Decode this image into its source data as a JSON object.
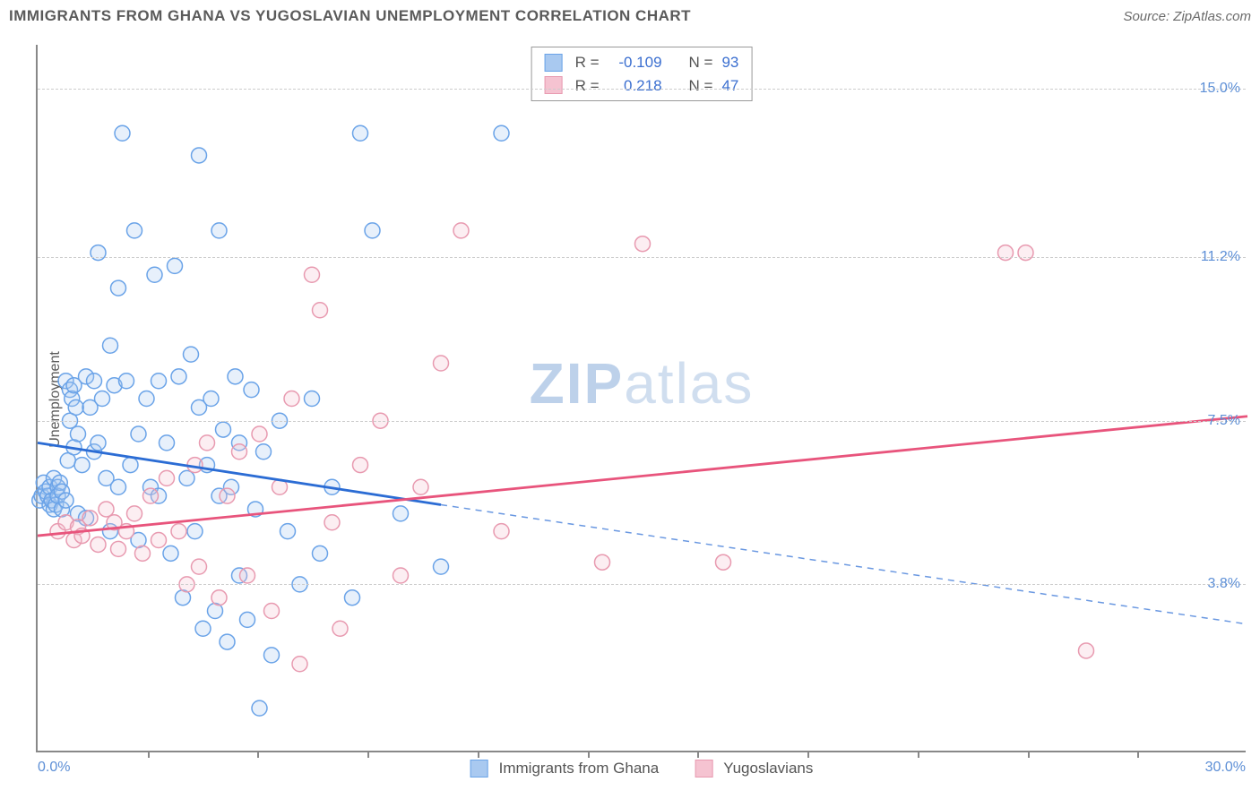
{
  "header": {
    "title": "IMMIGRANTS FROM GHANA VS YUGOSLAVIAN UNEMPLOYMENT CORRELATION CHART",
    "source": "Source: ZipAtlas.com"
  },
  "watermark": {
    "zip": "ZIP",
    "atlas": "atlas"
  },
  "chart": {
    "type": "scatter-with-regression",
    "ylabel": "Unemployment",
    "xlim": [
      0,
      30
    ],
    "ylim": [
      0,
      16
    ],
    "x_min_label": "0.0%",
    "x_max_label": "30.0%",
    "x_ticks": [
      2.73,
      5.45,
      8.18,
      10.91,
      13.64,
      16.36,
      19.09,
      21.82,
      24.55,
      27.27
    ],
    "y_gridlines": [
      3.8,
      7.5,
      11.2,
      15.0
    ],
    "y_tick_labels": [
      "3.8%",
      "7.5%",
      "11.2%",
      "15.0%"
    ],
    "grid_color": "#cccccc",
    "axis_color": "#888888",
    "background_color": "#ffffff",
    "tick_label_color": "#5d8fd6",
    "axis_label_color": "#5a5a5a",
    "marker_radius": 8.5,
    "marker_stroke_width": 1.5,
    "marker_fill_opacity": 0.28,
    "line_width": 2.8,
    "series": [
      {
        "name": "Immigrants from Ghana",
        "color_stroke": "#6aa3e8",
        "color_fill": "#a9c9f0",
        "line_color": "#2b6cd4",
        "R": "-0.109",
        "N": "93",
        "regression": {
          "x1": 0,
          "y1": 7.0,
          "x_solid_end": 10.0,
          "y_solid_end": 5.6,
          "x2": 30,
          "y2": 2.9,
          "dash_after_solid": true
        },
        "points": [
          [
            0.05,
            5.7
          ],
          [
            0.1,
            5.8
          ],
          [
            0.15,
            6.1
          ],
          [
            0.2,
            5.9
          ],
          [
            0.25,
            5.8
          ],
          [
            0.3,
            6.0
          ],
          [
            0.3,
            5.6
          ],
          [
            0.35,
            5.7
          ],
          [
            0.4,
            5.5
          ],
          [
            0.4,
            6.2
          ],
          [
            0.45,
            5.6
          ],
          [
            0.5,
            6.0
          ],
          [
            0.5,
            5.8
          ],
          [
            0.55,
            6.1
          ],
          [
            0.6,
            5.5
          ],
          [
            0.6,
            5.9
          ],
          [
            0.7,
            5.7
          ],
          [
            0.7,
            8.4
          ],
          [
            0.75,
            6.6
          ],
          [
            0.8,
            7.5
          ],
          [
            0.8,
            8.2
          ],
          [
            0.85,
            8.0
          ],
          [
            0.9,
            6.9
          ],
          [
            0.9,
            8.3
          ],
          [
            0.95,
            7.8
          ],
          [
            1.0,
            7.2
          ],
          [
            1.0,
            5.4
          ],
          [
            1.1,
            6.5
          ],
          [
            1.2,
            8.5
          ],
          [
            1.2,
            5.3
          ],
          [
            1.3,
            7.8
          ],
          [
            1.4,
            6.8
          ],
          [
            1.4,
            8.4
          ],
          [
            1.5,
            7.0
          ],
          [
            1.5,
            11.3
          ],
          [
            1.6,
            8.0
          ],
          [
            1.7,
            6.2
          ],
          [
            1.8,
            9.2
          ],
          [
            1.8,
            5.0
          ],
          [
            1.9,
            8.3
          ],
          [
            2.0,
            10.5
          ],
          [
            2.0,
            6.0
          ],
          [
            2.1,
            14.0
          ],
          [
            2.2,
            8.4
          ],
          [
            2.3,
            6.5
          ],
          [
            2.4,
            11.8
          ],
          [
            2.5,
            7.2
          ],
          [
            2.5,
            4.8
          ],
          [
            2.7,
            8.0
          ],
          [
            2.8,
            6.0
          ],
          [
            2.9,
            10.8
          ],
          [
            3.0,
            8.4
          ],
          [
            3.0,
            5.8
          ],
          [
            3.2,
            7.0
          ],
          [
            3.3,
            4.5
          ],
          [
            3.4,
            11.0
          ],
          [
            3.5,
            8.5
          ],
          [
            3.6,
            3.5
          ],
          [
            3.7,
            6.2
          ],
          [
            3.8,
            9.0
          ],
          [
            3.9,
            5.0
          ],
          [
            4.0,
            13.5
          ],
          [
            4.0,
            7.8
          ],
          [
            4.1,
            2.8
          ],
          [
            4.2,
            6.5
          ],
          [
            4.3,
            8.0
          ],
          [
            4.4,
            3.2
          ],
          [
            4.5,
            11.8
          ],
          [
            4.5,
            5.8
          ],
          [
            4.6,
            7.3
          ],
          [
            4.7,
            2.5
          ],
          [
            4.8,
            6.0
          ],
          [
            4.9,
            8.5
          ],
          [
            5.0,
            4.0
          ],
          [
            5.0,
            7.0
          ],
          [
            5.2,
            3.0
          ],
          [
            5.3,
            8.2
          ],
          [
            5.4,
            5.5
          ],
          [
            5.5,
            1.0
          ],
          [
            5.6,
            6.8
          ],
          [
            5.8,
            2.2
          ],
          [
            6.0,
            7.5
          ],
          [
            6.2,
            5.0
          ],
          [
            6.5,
            3.8
          ],
          [
            6.8,
            8.0
          ],
          [
            7.0,
            4.5
          ],
          [
            7.3,
            6.0
          ],
          [
            7.8,
            3.5
          ],
          [
            8.0,
            14.0
          ],
          [
            8.3,
            11.8
          ],
          [
            9.0,
            5.4
          ],
          [
            10.0,
            4.2
          ],
          [
            11.5,
            14.0
          ]
        ]
      },
      {
        "name": "Yugoslavians",
        "color_stroke": "#e89ab0",
        "color_fill": "#f5c3d1",
        "line_color": "#e8547c",
        "R": "0.218",
        "N": "47",
        "regression": {
          "x1": 0,
          "y1": 4.9,
          "x_solid_end": 30,
          "y_solid_end": 7.6,
          "x2": 30,
          "y2": 7.6,
          "dash_after_solid": false
        },
        "points": [
          [
            0.5,
            5.0
          ],
          [
            0.7,
            5.2
          ],
          [
            0.9,
            4.8
          ],
          [
            1.0,
            5.1
          ],
          [
            1.1,
            4.9
          ],
          [
            1.3,
            5.3
          ],
          [
            1.5,
            4.7
          ],
          [
            1.7,
            5.5
          ],
          [
            1.9,
            5.2
          ],
          [
            2.0,
            4.6
          ],
          [
            2.2,
            5.0
          ],
          [
            2.4,
            5.4
          ],
          [
            2.6,
            4.5
          ],
          [
            2.8,
            5.8
          ],
          [
            3.0,
            4.8
          ],
          [
            3.2,
            6.2
          ],
          [
            3.5,
            5.0
          ],
          [
            3.7,
            3.8
          ],
          [
            3.9,
            6.5
          ],
          [
            4.0,
            4.2
          ],
          [
            4.2,
            7.0
          ],
          [
            4.5,
            3.5
          ],
          [
            4.7,
            5.8
          ],
          [
            5.0,
            6.8
          ],
          [
            5.2,
            4.0
          ],
          [
            5.5,
            7.2
          ],
          [
            5.8,
            3.2
          ],
          [
            6.0,
            6.0
          ],
          [
            6.3,
            8.0
          ],
          [
            6.5,
            2.0
          ],
          [
            6.8,
            10.8
          ],
          [
            7.0,
            10.0
          ],
          [
            7.3,
            5.2
          ],
          [
            7.5,
            2.8
          ],
          [
            8.0,
            6.5
          ],
          [
            8.5,
            7.5
          ],
          [
            9.0,
            4.0
          ],
          [
            9.5,
            6.0
          ],
          [
            10.0,
            8.8
          ],
          [
            10.5,
            11.8
          ],
          [
            11.5,
            5.0
          ],
          [
            14.0,
            4.3
          ],
          [
            15.0,
            11.5
          ],
          [
            17.0,
            4.3
          ],
          [
            24.5,
            11.3
          ],
          [
            26.0,
            2.3
          ],
          [
            24.0,
            11.3
          ]
        ]
      }
    ],
    "stats_box": {
      "R_label": "R =",
      "N_label": "N ="
    },
    "legend": {
      "items": [
        "Immigrants from Ghana",
        "Yugoslavians"
      ]
    }
  }
}
